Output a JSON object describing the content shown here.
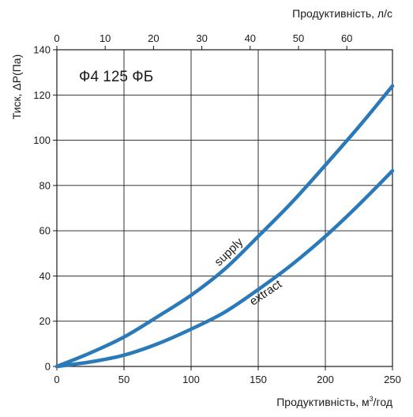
{
  "chart_data": {
    "type": "line",
    "title": "",
    "box_label": "Ф4  125 ФБ",
    "xlabel_bottom": {
      "pre": "Продуктивність, м",
      "sup": "3",
      "post": "/год"
    },
    "xlabel_top": "Продуктивність, л/с",
    "ylabel": "Тиск, ΔP(Па)",
    "xlim": [
      0,
      250
    ],
    "ylim": [
      0,
      140
    ],
    "x2lim": [
      0,
      69.444
    ],
    "x_ticks": [
      0,
      50,
      100,
      150,
      200,
      250
    ],
    "x2_ticks": [
      0,
      10,
      20,
      30,
      40,
      50,
      60
    ],
    "y_ticks": [
      0,
      20,
      40,
      60,
      80,
      100,
      120,
      140
    ],
    "grid": true,
    "series": [
      {
        "name": "supply",
        "color": "#2a79b9",
        "x": [
          0,
          25,
          50,
          75,
          100,
          125,
          150,
          175,
          200,
          225,
          250
        ],
        "y": [
          0,
          6,
          13,
          22,
          31.5,
          43,
          57.5,
          72.5,
          89,
          106,
          124
        ]
      },
      {
        "name": "extract",
        "color": "#2a79b9",
        "x": [
          0,
          25,
          50,
          75,
          100,
          125,
          150,
          175,
          200,
          225,
          250
        ],
        "y": [
          0,
          2,
          5,
          10,
          16.5,
          24,
          34,
          45,
          57.5,
          71.5,
          86.5
        ]
      }
    ]
  }
}
